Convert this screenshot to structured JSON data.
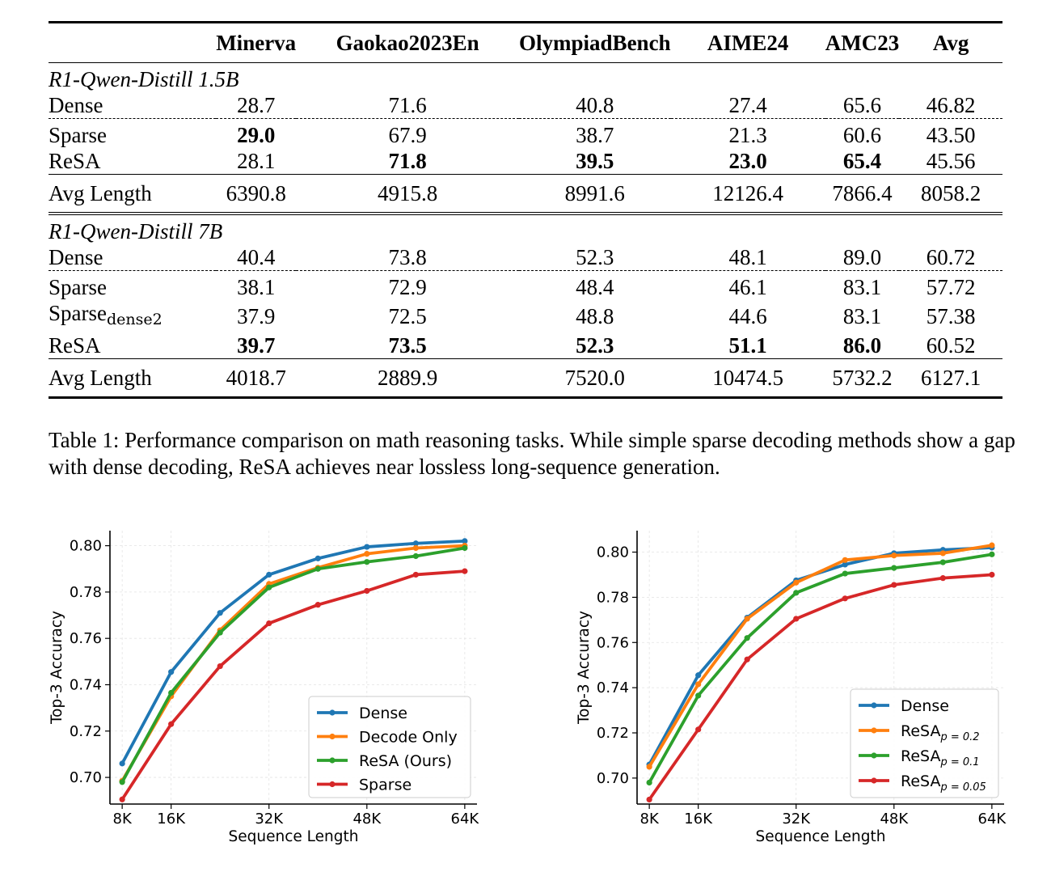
{
  "table": {
    "columns": [
      "",
      "Minerva",
      "Gaokao2023En",
      "OlympiadBench",
      "AIME24",
      "AMC23",
      "Avg"
    ],
    "groups": [
      {
        "name": "R1-Qwen-Distill 1.5B",
        "rows": [
          {
            "label": "Dense",
            "sub": "",
            "values": [
              "28.7",
              "71.6",
              "40.8",
              "27.4",
              "65.6",
              "46.82"
            ],
            "bold": [
              false,
              false,
              false,
              false,
              false,
              false
            ]
          },
          {
            "label": "Sparse",
            "sub": "",
            "values": [
              "29.0",
              "67.9",
              "38.7",
              "21.3",
              "60.6",
              "43.50"
            ],
            "bold": [
              true,
              false,
              false,
              false,
              false,
              false
            ]
          },
          {
            "label": "ReSA",
            "sub": "",
            "values": [
              "28.1",
              "71.8",
              "39.5",
              "23.0",
              "65.4",
              "45.56"
            ],
            "bold": [
              false,
              true,
              true,
              true,
              true,
              false
            ]
          }
        ],
        "avg_length": {
          "label": "Avg Length",
          "values": [
            "6390.8",
            "4915.8",
            "8991.6",
            "12126.4",
            "7866.4",
            "8058.2"
          ]
        }
      },
      {
        "name": "R1-Qwen-Distill 7B",
        "rows": [
          {
            "label": "Dense",
            "sub": "",
            "values": [
              "40.4",
              "73.8",
              "52.3",
              "48.1",
              "89.0",
              "60.72"
            ],
            "bold": [
              false,
              false,
              false,
              false,
              false,
              false
            ]
          },
          {
            "label": "Sparse",
            "sub": "",
            "values": [
              "38.1",
              "72.9",
              "48.4",
              "46.1",
              "83.1",
              "57.72"
            ],
            "bold": [
              false,
              false,
              false,
              false,
              false,
              false
            ]
          },
          {
            "label": "Sparse",
            "sub": "dense2",
            "values": [
              "37.9",
              "72.5",
              "48.8",
              "44.6",
              "83.1",
              "57.38"
            ],
            "bold": [
              false,
              false,
              false,
              false,
              false,
              false
            ]
          },
          {
            "label": "ReSA",
            "sub": "",
            "values": [
              "39.7",
              "73.5",
              "52.3",
              "51.1",
              "86.0",
              "60.52"
            ],
            "bold": [
              true,
              true,
              true,
              true,
              true,
              false
            ]
          }
        ],
        "avg_length": {
          "label": "Avg Length",
          "values": [
            "4018.7",
            "2889.9",
            "7520.0",
            "10474.5",
            "5732.2",
            "6127.1"
          ]
        }
      }
    ]
  },
  "caption": "Table 1: Performance comparison on math reasoning tasks. While simple sparse decoding methods show a gap with dense decoding, ReSA achieves near lossless long-sequence generation.",
  "chart_data": [
    {
      "type": "line",
      "xlabel": "Sequence Length",
      "ylabel": "Top-3 Accuracy",
      "x": [
        8,
        16,
        24,
        32,
        40,
        48,
        56,
        64
      ],
      "xticks": [
        8,
        16,
        32,
        48,
        64
      ],
      "xtick_labels": [
        "8K",
        "16K",
        "32K",
        "48K",
        "64K"
      ],
      "xlim": [
        6,
        66
      ],
      "yticks": [
        0.7,
        0.72,
        0.74,
        0.76,
        0.78,
        0.8
      ],
      "ytick_labels": [
        "0.70",
        "0.72",
        "0.74",
        "0.76",
        "0.78",
        "0.80"
      ],
      "ylim": [
        0.6885,
        0.8065
      ],
      "grid": true,
      "legend": "lower-right",
      "series": [
        {
          "name": "Dense",
          "sub": "",
          "color": "#1f77b4",
          "values": [
            0.706,
            0.7455,
            0.771,
            0.7875,
            0.7945,
            0.7995,
            0.801,
            0.802
          ]
        },
        {
          "name": "Decode Only",
          "sub": "",
          "color": "#ff7f0e",
          "values": [
            0.6985,
            0.735,
            0.7635,
            0.7835,
            0.7905,
            0.7965,
            0.799,
            0.8
          ]
        },
        {
          "name": "ReSA (Ours)",
          "sub": "",
          "color": "#2ca02c",
          "values": [
            0.698,
            0.7365,
            0.7625,
            0.782,
            0.79,
            0.793,
            0.7955,
            0.799
          ]
        },
        {
          "name": "Sparse",
          "sub": "",
          "color": "#d62728",
          "values": [
            0.6905,
            0.723,
            0.748,
            0.7665,
            0.7745,
            0.7805,
            0.7875,
            0.789
          ]
        }
      ]
    },
    {
      "type": "line",
      "xlabel": "Sequence Length",
      "ylabel": "Top-3 Accuracy",
      "x": [
        8,
        16,
        24,
        32,
        40,
        48,
        56,
        64
      ],
      "xticks": [
        8,
        16,
        32,
        48,
        64
      ],
      "xtick_labels": [
        "8K",
        "16K",
        "32K",
        "48K",
        "64K"
      ],
      "xlim": [
        6,
        66
      ],
      "yticks": [
        0.7,
        0.72,
        0.74,
        0.76,
        0.78,
        0.8
      ],
      "ytick_labels": [
        "0.70",
        "0.72",
        "0.74",
        "0.76",
        "0.78",
        "0.80"
      ],
      "ylim": [
        0.6885,
        0.8095
      ],
      "grid": true,
      "legend": "lower-right",
      "series": [
        {
          "name": "Dense",
          "sub": "",
          "color": "#1f77b4",
          "values": [
            0.706,
            0.7455,
            0.771,
            0.7875,
            0.7945,
            0.7995,
            0.801,
            0.802
          ]
        },
        {
          "name": "ReSA",
          "sub": "p = 0.2",
          "color": "#ff7f0e",
          "values": [
            0.705,
            0.7415,
            0.7705,
            0.7865,
            0.7965,
            0.7985,
            0.7995,
            0.803
          ]
        },
        {
          "name": "ReSA",
          "sub": "p = 0.1",
          "color": "#2ca02c",
          "values": [
            0.698,
            0.7365,
            0.762,
            0.782,
            0.7905,
            0.793,
            0.7955,
            0.799
          ]
        },
        {
          "name": "ReSA",
          "sub": "p = 0.05",
          "color": "#d62728",
          "values": [
            0.6905,
            0.7215,
            0.7525,
            0.7705,
            0.7795,
            0.7855,
            0.7885,
            0.79
          ]
        }
      ]
    }
  ]
}
